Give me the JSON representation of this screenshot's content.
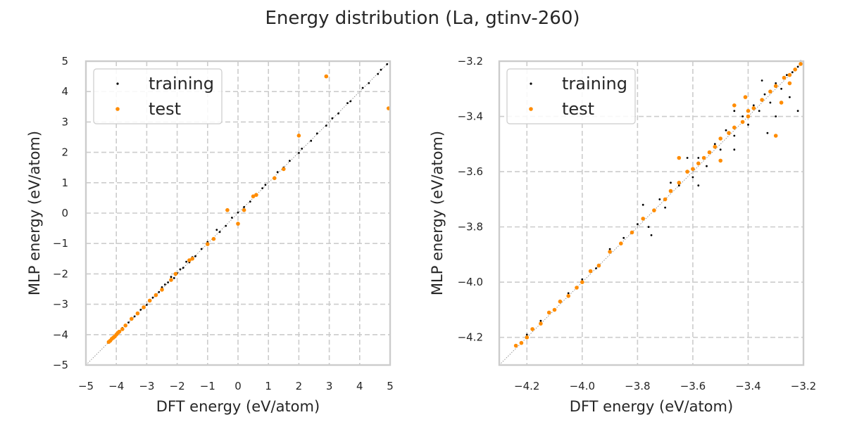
{
  "figure": {
    "title": "Energy distribution (La, gtinv-260)"
  },
  "chart_data": [
    {
      "type": "scatter",
      "title": "",
      "xlabel": "DFT energy (eV/atom)",
      "ylabel": "MLP energy (eV/atom)",
      "xlim": [
        -5,
        5
      ],
      "ylim": [
        -5,
        5
      ],
      "xticks": [
        "−5",
        "−4",
        "−3",
        "−2",
        "−1",
        "0",
        "1",
        "2",
        "3",
        "4",
        "5"
      ],
      "yticks": [
        "−5",
        "−4",
        "−3",
        "−2",
        "−1",
        "0",
        "1",
        "2",
        "3",
        "4",
        "5"
      ],
      "grid": true,
      "legend": "upper-left",
      "reference_line": "y = x",
      "series": [
        {
          "name": "training",
          "color": "#000000",
          "points": [
            [
              -4.2,
              -4.19
            ],
            [
              -4.1,
              -4.09
            ],
            [
              -4.0,
              -3.97
            ],
            [
              -3.9,
              -3.9
            ],
            [
              -3.8,
              -3.78
            ],
            [
              -3.6,
              -3.6
            ],
            [
              -3.4,
              -3.4
            ],
            [
              -3.2,
              -3.18
            ],
            [
              -3.0,
              -3.02
            ],
            [
              -2.8,
              -2.78
            ],
            [
              -2.6,
              -2.6
            ],
            [
              -2.5,
              -2.44
            ],
            [
              -2.4,
              -2.35
            ],
            [
              -2.3,
              -2.28
            ],
            [
              -2.2,
              -2.1
            ],
            [
              -2.1,
              -2.14
            ],
            [
              -2.0,
              -1.98
            ],
            [
              -1.9,
              -1.85
            ],
            [
              -1.8,
              -1.8
            ],
            [
              -1.7,
              -1.6
            ],
            [
              -1.6,
              -1.62
            ],
            [
              -1.5,
              -1.45
            ],
            [
              -1.4,
              -1.42
            ],
            [
              -1.2,
              -1.18
            ],
            [
              -1.0,
              -0.95
            ],
            [
              -0.8,
              -0.85
            ],
            [
              -0.7,
              -0.55
            ],
            [
              -0.6,
              -0.62
            ],
            [
              -0.4,
              -0.42
            ],
            [
              -0.2,
              -0.15
            ],
            [
              0.0,
              0.02
            ],
            [
              0.2,
              0.2
            ],
            [
              0.4,
              0.38
            ],
            [
              0.6,
              0.62
            ],
            [
              0.8,
              0.82
            ],
            [
              0.9,
              0.93
            ],
            [
              1.2,
              1.18
            ],
            [
              1.3,
              1.35
            ],
            [
              1.5,
              1.5
            ],
            [
              1.7,
              1.72
            ],
            [
              2.0,
              1.98
            ],
            [
              2.1,
              2.12
            ],
            [
              2.4,
              2.38
            ],
            [
              2.6,
              2.62
            ],
            [
              2.9,
              2.88
            ],
            [
              3.1,
              3.12
            ],
            [
              3.3,
              3.28
            ],
            [
              3.6,
              3.62
            ],
            [
              3.7,
              3.68
            ],
            [
              4.1,
              4.12
            ],
            [
              4.3,
              4.28
            ],
            [
              4.6,
              4.58
            ],
            [
              4.7,
              4.72
            ],
            [
              4.9,
              4.9
            ]
          ]
        },
        {
          "name": "test",
          "color": "#ff8c00",
          "points": [
            [
              -4.25,
              -4.24
            ],
            [
              -4.2,
              -4.2
            ],
            [
              -4.15,
              -4.14
            ],
            [
              -4.1,
              -4.1
            ],
            [
              -4.05,
              -4.06
            ],
            [
              -4.0,
              -4.0
            ],
            [
              -3.95,
              -3.94
            ],
            [
              -3.9,
              -3.9
            ],
            [
              -3.8,
              -3.82
            ],
            [
              -3.7,
              -3.7
            ],
            [
              -3.5,
              -3.48
            ],
            [
              -3.3,
              -3.3
            ],
            [
              -3.1,
              -3.1
            ],
            [
              -2.9,
              -2.88
            ],
            [
              -2.7,
              -2.7
            ],
            [
              -2.5,
              -2.52
            ],
            [
              -2.2,
              -2.2
            ],
            [
              -2.05,
              -2.0
            ],
            [
              -1.6,
              -1.55
            ],
            [
              -1.5,
              -1.5
            ],
            [
              -1.0,
              -1.02
            ],
            [
              -0.8,
              -0.85
            ],
            [
              -0.35,
              0.1
            ],
            [
              0.0,
              -0.35
            ],
            [
              0.2,
              0.1
            ],
            [
              0.5,
              0.55
            ],
            [
              0.6,
              0.6
            ],
            [
              1.2,
              1.15
            ],
            [
              1.5,
              1.45
            ],
            [
              2.0,
              2.55
            ],
            [
              2.9,
              4.5
            ],
            [
              4.95,
              3.45
            ]
          ]
        }
      ]
    },
    {
      "type": "scatter",
      "title": "",
      "xlabel": "DFT energy (eV/atom)",
      "ylabel": "MLP energy (eV/atom)",
      "xlim": [
        -4.3,
        -3.2
      ],
      "ylim": [
        -4.3,
        -3.2
      ],
      "xticks": [
        "−4.2",
        "−4.0",
        "−3.8",
        "−3.6",
        "−3.4",
        "−3.2"
      ],
      "yticks": [
        "−4.2",
        "−4.0",
        "−3.8",
        "−3.6",
        "−3.4",
        "−3.2"
      ],
      "grid": true,
      "legend": "upper-left",
      "reference_line": "y = x",
      "series": [
        {
          "name": "training",
          "color": "#000000",
          "points": [
            [
              -4.2,
              -4.19
            ],
            [
              -4.15,
              -4.14
            ],
            [
              -4.1,
              -4.1
            ],
            [
              -4.05,
              -4.04
            ],
            [
              -4.0,
              -3.99
            ],
            [
              -3.95,
              -3.95
            ],
            [
              -3.9,
              -3.88
            ],
            [
              -3.85,
              -3.84
            ],
            [
              -3.8,
              -3.79
            ],
            [
              -3.76,
              -3.8
            ],
            [
              -3.72,
              -3.7
            ],
            [
              -3.7,
              -3.73
            ],
            [
              -3.68,
              -3.64
            ],
            [
              -3.65,
              -3.65
            ],
            [
              -3.62,
              -3.6
            ],
            [
              -3.6,
              -3.62
            ],
            [
              -3.58,
              -3.55
            ],
            [
              -3.55,
              -3.58
            ],
            [
              -3.52,
              -3.5
            ],
            [
              -3.5,
              -3.52
            ],
            [
              -3.48,
              -3.45
            ],
            [
              -3.45,
              -3.47
            ],
            [
              -3.42,
              -3.4
            ],
            [
              -3.4,
              -3.43
            ],
            [
              -3.38,
              -3.36
            ],
            [
              -3.36,
              -3.38
            ],
            [
              -3.34,
              -3.32
            ],
            [
              -3.32,
              -3.35
            ],
            [
              -3.3,
              -3.28
            ],
            [
              -3.28,
              -3.3
            ],
            [
              -3.26,
              -3.25
            ],
            [
              -3.24,
              -3.24
            ],
            [
              -3.22,
              -3.22
            ],
            [
              -3.21,
              -3.2
            ],
            [
              -3.35,
              -3.27
            ],
            [
              -3.25,
              -3.33
            ],
            [
              -3.3,
              -3.4
            ],
            [
              -3.45,
              -3.38
            ],
            [
              -3.62,
              -3.55
            ],
            [
              -3.58,
              -3.65
            ],
            [
              -3.78,
              -3.72
            ],
            [
              -3.75,
              -3.83
            ],
            [
              -3.22,
              -3.38
            ],
            [
              -3.45,
              -3.52
            ],
            [
              -3.33,
              -3.46
            ]
          ]
        },
        {
          "name": "test",
          "color": "#ff8c00",
          "points": [
            [
              -4.24,
              -4.23
            ],
            [
              -4.22,
              -4.22
            ],
            [
              -4.2,
              -4.2
            ],
            [
              -4.18,
              -4.17
            ],
            [
              -4.15,
              -4.15
            ],
            [
              -4.12,
              -4.11
            ],
            [
              -4.1,
              -4.1
            ],
            [
              -4.08,
              -4.07
            ],
            [
              -4.05,
              -4.05
            ],
            [
              -4.02,
              -4.02
            ],
            [
              -4.0,
              -4.0
            ],
            [
              -3.97,
              -3.96
            ],
            [
              -3.94,
              -3.94
            ],
            [
              -3.9,
              -3.89
            ],
            [
              -3.86,
              -3.86
            ],
            [
              -3.82,
              -3.82
            ],
            [
              -3.78,
              -3.77
            ],
            [
              -3.74,
              -3.74
            ],
            [
              -3.7,
              -3.7
            ],
            [
              -3.68,
              -3.67
            ],
            [
              -3.65,
              -3.64
            ],
            [
              -3.62,
              -3.6
            ],
            [
              -3.6,
              -3.59
            ],
            [
              -3.58,
              -3.57
            ],
            [
              -3.56,
              -3.55
            ],
            [
              -3.54,
              -3.53
            ],
            [
              -3.52,
              -3.51
            ],
            [
              -3.5,
              -3.48
            ],
            [
              -3.47,
              -3.46
            ],
            [
              -3.45,
              -3.44
            ],
            [
              -3.42,
              -3.42
            ],
            [
              -3.4,
              -3.4
            ],
            [
              -3.38,
              -3.37
            ],
            [
              -3.35,
              -3.34
            ],
            [
              -3.32,
              -3.31
            ],
            [
              -3.3,
              -3.29
            ],
            [
              -3.27,
              -3.26
            ],
            [
              -3.25,
              -3.25
            ],
            [
              -3.23,
              -3.23
            ],
            [
              -3.21,
              -3.21
            ],
            [
              -3.41,
              -3.33
            ],
            [
              -3.3,
              -3.47
            ],
            [
              -3.65,
              -3.55
            ],
            [
              -3.4,
              -3.38
            ],
            [
              -3.5,
              -3.56
            ],
            [
              -3.45,
              -3.36
            ],
            [
              -3.25,
              -3.28
            ],
            [
              -3.28,
              -3.35
            ]
          ]
        }
      ]
    }
  ]
}
